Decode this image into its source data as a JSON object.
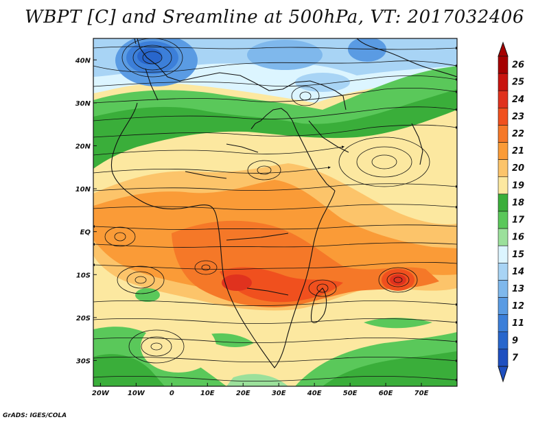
{
  "title": "WBPT [C] and Sreamline at 500hPa, VT: 2017032406",
  "credit": "GrADS: IGES/COLA",
  "map": {
    "lon_range": [
      -22,
      80
    ],
    "lat_range": [
      -36,
      45
    ],
    "lon_ticks": [
      {
        "value": -20,
        "label": "20W"
      },
      {
        "value": -10,
        "label": "10W"
      },
      {
        "value": 0,
        "label": "0"
      },
      {
        "value": 10,
        "label": "10E"
      },
      {
        "value": 20,
        "label": "20E"
      },
      {
        "value": 30,
        "label": "30E"
      },
      {
        "value": 40,
        "label": "40E"
      },
      {
        "value": 50,
        "label": "50E"
      },
      {
        "value": 60,
        "label": "60E"
      },
      {
        "value": 70,
        "label": "70E"
      }
    ],
    "lat_ticks": [
      {
        "value": 40,
        "label": "40N"
      },
      {
        "value": 30,
        "label": "30N"
      },
      {
        "value": 20,
        "label": "20N"
      },
      {
        "value": 10,
        "label": "10N"
      },
      {
        "value": 0,
        "label": "EQ"
      },
      {
        "value": -10,
        "label": "10S"
      },
      {
        "value": -20,
        "label": "20S"
      },
      {
        "value": -30,
        "label": "30S"
      }
    ]
  },
  "colorbar": {
    "levels": [
      {
        "label": "26",
        "color": "#a50000"
      },
      {
        "label": "25",
        "color": "#c8140f"
      },
      {
        "label": "24",
        "color": "#e0321e"
      },
      {
        "label": "23",
        "color": "#f0501e"
      },
      {
        "label": "22",
        "color": "#f57828"
      },
      {
        "label": "21",
        "color": "#fa9b37"
      },
      {
        "label": "20",
        "color": "#fcc46a"
      },
      {
        "label": "19",
        "color": "#fce8a0"
      },
      {
        "label": "18",
        "color": "#3aae3a"
      },
      {
        "label": "17",
        "color": "#5ac85a"
      },
      {
        "label": "16",
        "color": "#9be09b"
      },
      {
        "label": "15",
        "color": "#dcf5ff"
      },
      {
        "label": "14",
        "color": "#a8d4f5"
      },
      {
        "label": "13",
        "color": "#7fb8ec"
      },
      {
        "label": "12",
        "color": "#5a9be3"
      },
      {
        "label": "11",
        "color": "#3c7fd9"
      },
      {
        "label": "9",
        "color": "#2866cc"
      },
      {
        "label": "7",
        "color": "#1e4fc0"
      }
    ]
  }
}
